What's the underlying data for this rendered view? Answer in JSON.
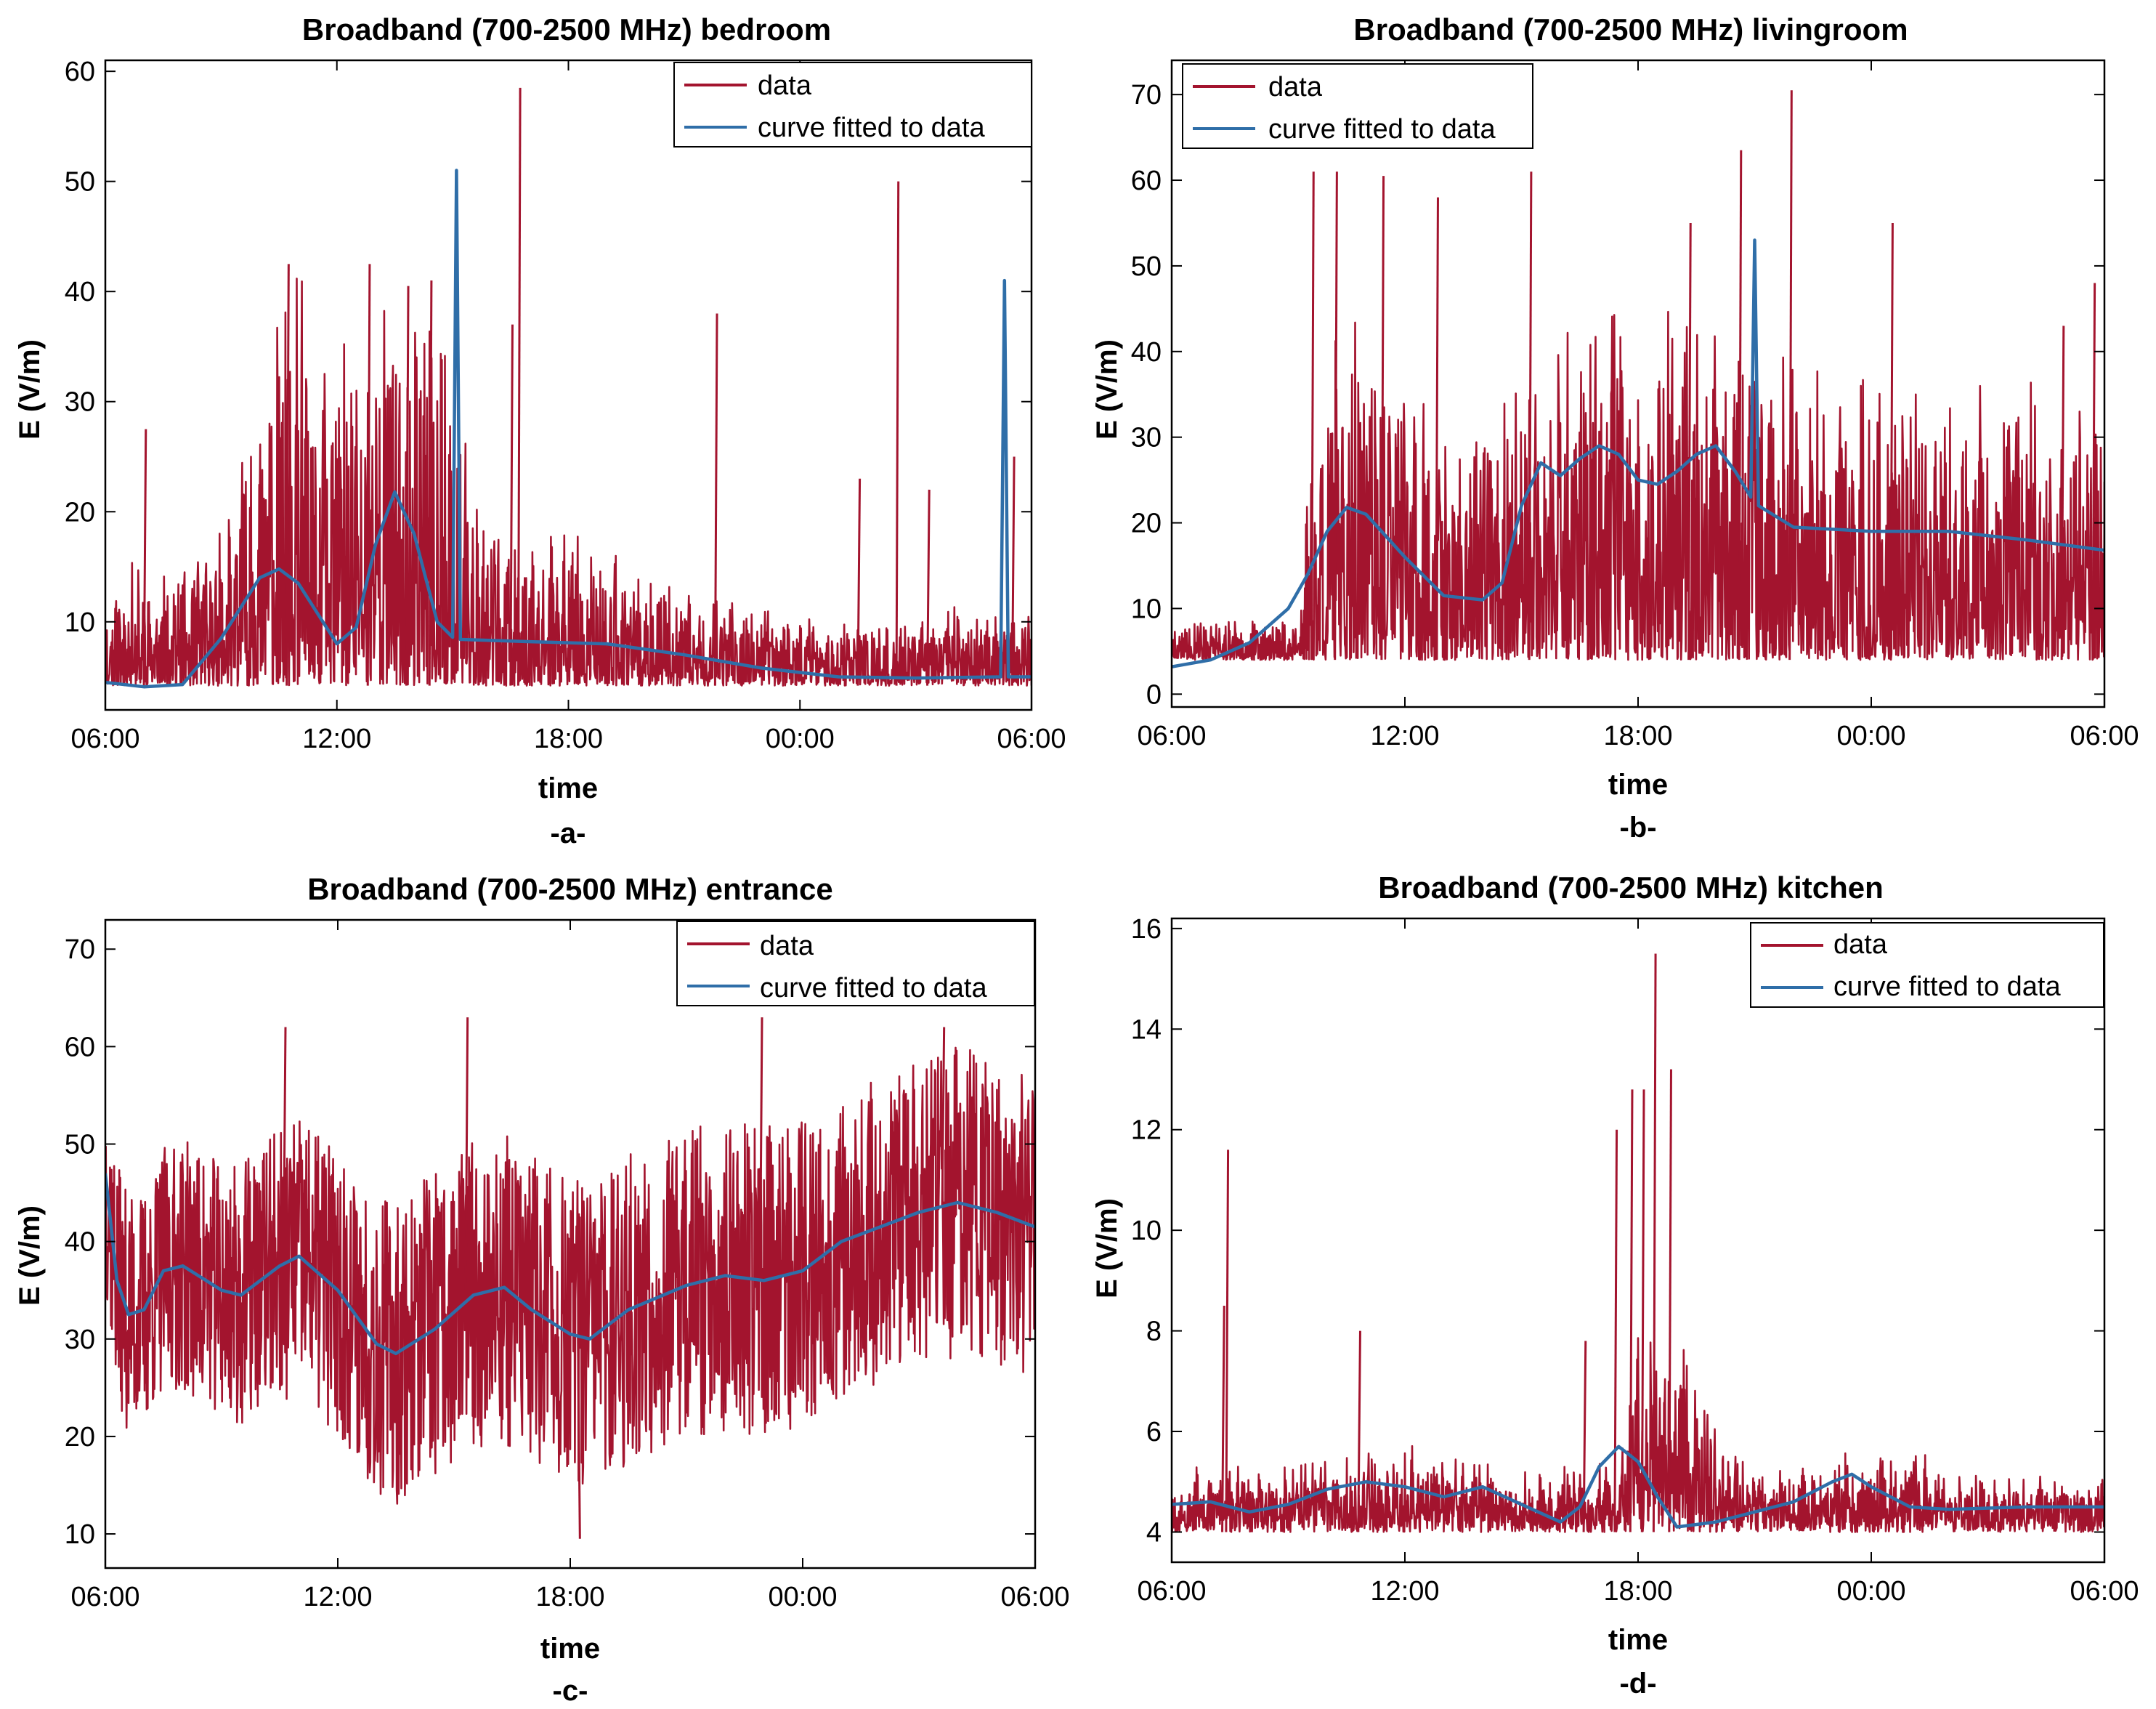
{
  "figure": {
    "panels": [
      {
        "id": "a",
        "sublabel": "-a-"
      },
      {
        "id": "b",
        "sublabel": "-b-"
      },
      {
        "id": "c",
        "sublabel": "-c-"
      },
      {
        "id": "d",
        "sublabel": "-d-"
      }
    ]
  },
  "colors": {
    "data": "#a3142e",
    "fit": "#2f6ea8",
    "axes": "#000000"
  },
  "chart_data": [
    {
      "type": "line",
      "title": "Broadband (700-2500 MHz) bedroom",
      "xlabel": "time",
      "ylabel": "E (V/m)",
      "xticks": [
        "06:00",
        "12:00",
        "18:00",
        "00:00",
        "06:00"
      ],
      "xlim_hours": [
        0,
        24
      ],
      "ylim": [
        2,
        61
      ],
      "yticks": [
        10,
        20,
        30,
        40,
        50,
        60
      ],
      "legend": [
        "data",
        "curve fitted to data"
      ],
      "legend_position": "top-right",
      "data_profile": {
        "base": 4.2,
        "seed": 11,
        "envelope": [
          [
            0,
            8
          ],
          [
            0.5,
            12
          ],
          [
            1.5,
            10
          ],
          [
            3,
            14
          ],
          [
            4,
            30
          ],
          [
            5,
            38
          ],
          [
            6,
            30
          ],
          [
            7,
            35
          ],
          [
            8,
            40
          ],
          [
            8.8,
            30
          ],
          [
            9.5,
            20
          ],
          [
            10.5,
            12
          ],
          [
            12,
            14
          ],
          [
            14,
            10
          ],
          [
            16,
            8
          ],
          [
            18,
            6
          ],
          [
            20,
            5
          ],
          [
            22,
            7
          ],
          [
            24,
            6
          ]
        ],
        "spikes": [
          [
            1,
            27.5
          ],
          [
            4.7,
            42.5
          ],
          [
            6.8,
            42.5
          ],
          [
            7.8,
            40.5
          ],
          [
            8.4,
            41
          ],
          [
            10.7,
            58.5
          ],
          [
            10.5,
            37
          ],
          [
            15.8,
            38
          ],
          [
            19.5,
            23
          ],
          [
            20.5,
            50
          ],
          [
            21.3,
            22
          ],
          [
            23.5,
            25
          ]
        ]
      },
      "series": [
        {
          "name": "curve fitted to data",
          "points": [
            [
              0,
              4.5
            ],
            [
              1,
              4.1
            ],
            [
              2,
              4.3
            ],
            [
              3,
              8.5
            ],
            [
              4,
              14
            ],
            [
              4.5,
              14.8
            ],
            [
              5,
              13.5
            ],
            [
              6,
              8
            ],
            [
              6.5,
              9.5
            ],
            [
              7,
              17
            ],
            [
              7.5,
              21.8
            ],
            [
              8,
              18
            ],
            [
              8.6,
              10
            ],
            [
              9,
              8.6
            ],
            [
              9.1,
              51
            ],
            [
              9.2,
              8.4
            ],
            [
              11,
              8.2
            ],
            [
              13,
              8.0
            ],
            [
              15,
              7.0
            ],
            [
              17,
              5.8
            ],
            [
              19,
              5.0
            ],
            [
              21,
              4.9
            ],
            [
              23.2,
              5.0
            ],
            [
              23.3,
              41
            ],
            [
              23.4,
              5.0
            ],
            [
              24,
              5.0
            ]
          ]
        }
      ]
    },
    {
      "type": "line",
      "title": "Broadband (700-2500 MHz) livingroom",
      "xlabel": "time",
      "ylabel": "E (V/m)",
      "xticks": [
        "06:00",
        "12:00",
        "18:00",
        "00:00",
        "06:00"
      ],
      "xlim_hours": [
        0,
        24
      ],
      "ylim": [
        -1.5,
        74
      ],
      "yticks": [
        0,
        10,
        20,
        30,
        40,
        50,
        60,
        70
      ],
      "legend": [
        "data",
        "curve fitted to data"
      ],
      "legend_position": "top-left",
      "data_profile": {
        "base": 4,
        "seed": 23,
        "envelope": [
          [
            0,
            4
          ],
          [
            3.3,
            5
          ],
          [
            3.5,
            30
          ],
          [
            4.5,
            40
          ],
          [
            5.5,
            38
          ],
          [
            6.5,
            30
          ],
          [
            7.5,
            25
          ],
          [
            8.5,
            30
          ],
          [
            9,
            35
          ],
          [
            10,
            42
          ],
          [
            12,
            42
          ],
          [
            14,
            40
          ],
          [
            15.5,
            40
          ],
          [
            17,
            33
          ],
          [
            19,
            32
          ],
          [
            21,
            32
          ],
          [
            24,
            33
          ]
        ],
        "spikes": [
          [
            3.6,
            61
          ],
          [
            4.2,
            61
          ],
          [
            5.4,
            60.5
          ],
          [
            6.8,
            58
          ],
          [
            9.2,
            61
          ],
          [
            13.3,
            55
          ],
          [
            14.6,
            63.5
          ],
          [
            15.9,
            70.5
          ],
          [
            18.5,
            55
          ],
          [
            22.9,
            43
          ],
          [
            23.7,
            48
          ]
        ]
      },
      "series": [
        {
          "name": "curve fitted to data",
          "points": [
            [
              0,
              3.2
            ],
            [
              1,
              4
            ],
            [
              2,
              6
            ],
            [
              3,
              10
            ],
            [
              3.5,
              14
            ],
            [
              4,
              19
            ],
            [
              4.5,
              21.8
            ],
            [
              5,
              21
            ],
            [
              6,
              16
            ],
            [
              7,
              11.5
            ],
            [
              8,
              11
            ],
            [
              8.5,
              13
            ],
            [
              9,
              22
            ],
            [
              9.5,
              27
            ],
            [
              10,
              25.5
            ],
            [
              10.5,
              27.5
            ],
            [
              11,
              29
            ],
            [
              11.5,
              28
            ],
            [
              12,
              25
            ],
            [
              12.5,
              24.5
            ],
            [
              13,
              26
            ],
            [
              13.5,
              28
            ],
            [
              14,
              29
            ],
            [
              14.5,
              26
            ],
            [
              14.9,
              23
            ],
            [
              15,
              53
            ],
            [
              15.1,
              22
            ],
            [
              16,
              19.5
            ],
            [
              18,
              19
            ],
            [
              20,
              19
            ],
            [
              22,
              18
            ],
            [
              24,
              16.8
            ]
          ]
        }
      ]
    },
    {
      "type": "line",
      "title": "Broadband (700-2500 MHz) entrance",
      "xlabel": "time",
      "ylabel": "E (V/m)",
      "xticks": [
        "06:00",
        "12:00",
        "18:00",
        "00:00",
        "06:00"
      ],
      "xlim_hours": [
        0,
        24
      ],
      "ylim": [
        6.5,
        73
      ],
      "yticks": [
        10,
        20,
        30,
        40,
        50,
        60,
        70
      ],
      "legend": [
        "data",
        "curve fitted to data"
      ],
      "legend_position": "top-right",
      "data_profile": {
        "base": 0,
        "seed": 37,
        "band": true,
        "envelope": [
          [
            0,
            12
          ],
          [
            4,
            14
          ],
          [
            8,
            16
          ],
          [
            12,
            16
          ],
          [
            16,
            16
          ],
          [
            20,
            16
          ],
          [
            24,
            16
          ]
        ],
        "spikes": [
          [
            4.6,
            62
          ],
          [
            9.3,
            63
          ],
          [
            12.2,
            9.5
          ],
          [
            16.9,
            63
          ],
          [
            21.6,
            62
          ]
        ]
      },
      "series": [
        {
          "name": "curve fitted to data",
          "points": [
            [
              0,
              47
            ],
            [
              0.3,
              36
            ],
            [
              0.6,
              32.5
            ],
            [
              1,
              33
            ],
            [
              1.5,
              37
            ],
            [
              2,
              37.5
            ],
            [
              3,
              35
            ],
            [
              3.5,
              34.5
            ],
            [
              4.5,
              37.5
            ],
            [
              5,
              38.5
            ],
            [
              6,
              35
            ],
            [
              7,
              29.5
            ],
            [
              7.5,
              28.5
            ],
            [
              8.5,
              31
            ],
            [
              9.5,
              34.5
            ],
            [
              10.3,
              35.3
            ],
            [
              11,
              33
            ],
            [
              12,
              30.5
            ],
            [
              12.5,
              30
            ],
            [
              13.5,
              33
            ],
            [
              15,
              35.5
            ],
            [
              16,
              36.5
            ],
            [
              17,
              36
            ],
            [
              18,
              37
            ],
            [
              19,
              40
            ],
            [
              20,
              41.5
            ],
            [
              21,
              43
            ],
            [
              22,
              44
            ],
            [
              23,
              43
            ],
            [
              24,
              41.5
            ]
          ]
        }
      ]
    },
    {
      "type": "line",
      "title": "Broadband (700-2500 MHz) kitchen",
      "xlabel": "time",
      "ylabel": "E (V/m)",
      "xticks": [
        "06:00",
        "12:00",
        "18:00",
        "00:00",
        "06:00"
      ],
      "xlim_hours": [
        0,
        24
      ],
      "ylim": [
        3.4,
        16.2
      ],
      "yticks": [
        4,
        6,
        8,
        10,
        12,
        14,
        16
      ],
      "legend": [
        "data",
        "curve fitted to data"
      ],
      "legend_position": "top-right",
      "data_profile": {
        "base": 4.0,
        "seed": 53,
        "envelope": [
          [
            0,
            1.2
          ],
          [
            2,
            1.0
          ],
          [
            4,
            1.4
          ],
          [
            6,
            1.6
          ],
          [
            8,
            1.2
          ],
          [
            10,
            1.0
          ],
          [
            11.5,
            1.2
          ],
          [
            12,
            4
          ],
          [
            13,
            4
          ],
          [
            14,
            2
          ],
          [
            15,
            1.0
          ],
          [
            17,
            1.2
          ],
          [
            18,
            1.6
          ],
          [
            19,
            1.5
          ],
          [
            21,
            1.0
          ],
          [
            24,
            1.0
          ]
        ],
        "spikes": [
          [
            1.4,
            11.6
          ],
          [
            1.3,
            8.5
          ],
          [
            4.8,
            8.0
          ],
          [
            10.6,
            7.8
          ],
          [
            12.4,
            15.5
          ],
          [
            12.8,
            13.2
          ],
          [
            12.1,
            12.8
          ],
          [
            11.8,
            12.8
          ],
          [
            11.4,
            12.0
          ]
        ]
      },
      "series": [
        {
          "name": "curve fitted to data",
          "points": [
            [
              0,
              4.55
            ],
            [
              1,
              4.6
            ],
            [
              2,
              4.4
            ],
            [
              3,
              4.55
            ],
            [
              4,
              4.85
            ],
            [
              5,
              5.0
            ],
            [
              6,
              4.9
            ],
            [
              7,
              4.7
            ],
            [
              8,
              4.9
            ],
            [
              9,
              4.55
            ],
            [
              10,
              4.2
            ],
            [
              10.5,
              4.5
            ],
            [
              11,
              5.3
            ],
            [
              11.5,
              5.7
            ],
            [
              12,
              5.4
            ],
            [
              12.5,
              4.7
            ],
            [
              13,
              4.1
            ],
            [
              14,
              4.2
            ],
            [
              15,
              4.4
            ],
            [
              16,
              4.6
            ],
            [
              17,
              5.0
            ],
            [
              17.5,
              5.15
            ],
            [
              18,
              4.9
            ],
            [
              19,
              4.5
            ],
            [
              20,
              4.45
            ],
            [
              22,
              4.5
            ],
            [
              24,
              4.5
            ]
          ]
        }
      ]
    }
  ]
}
